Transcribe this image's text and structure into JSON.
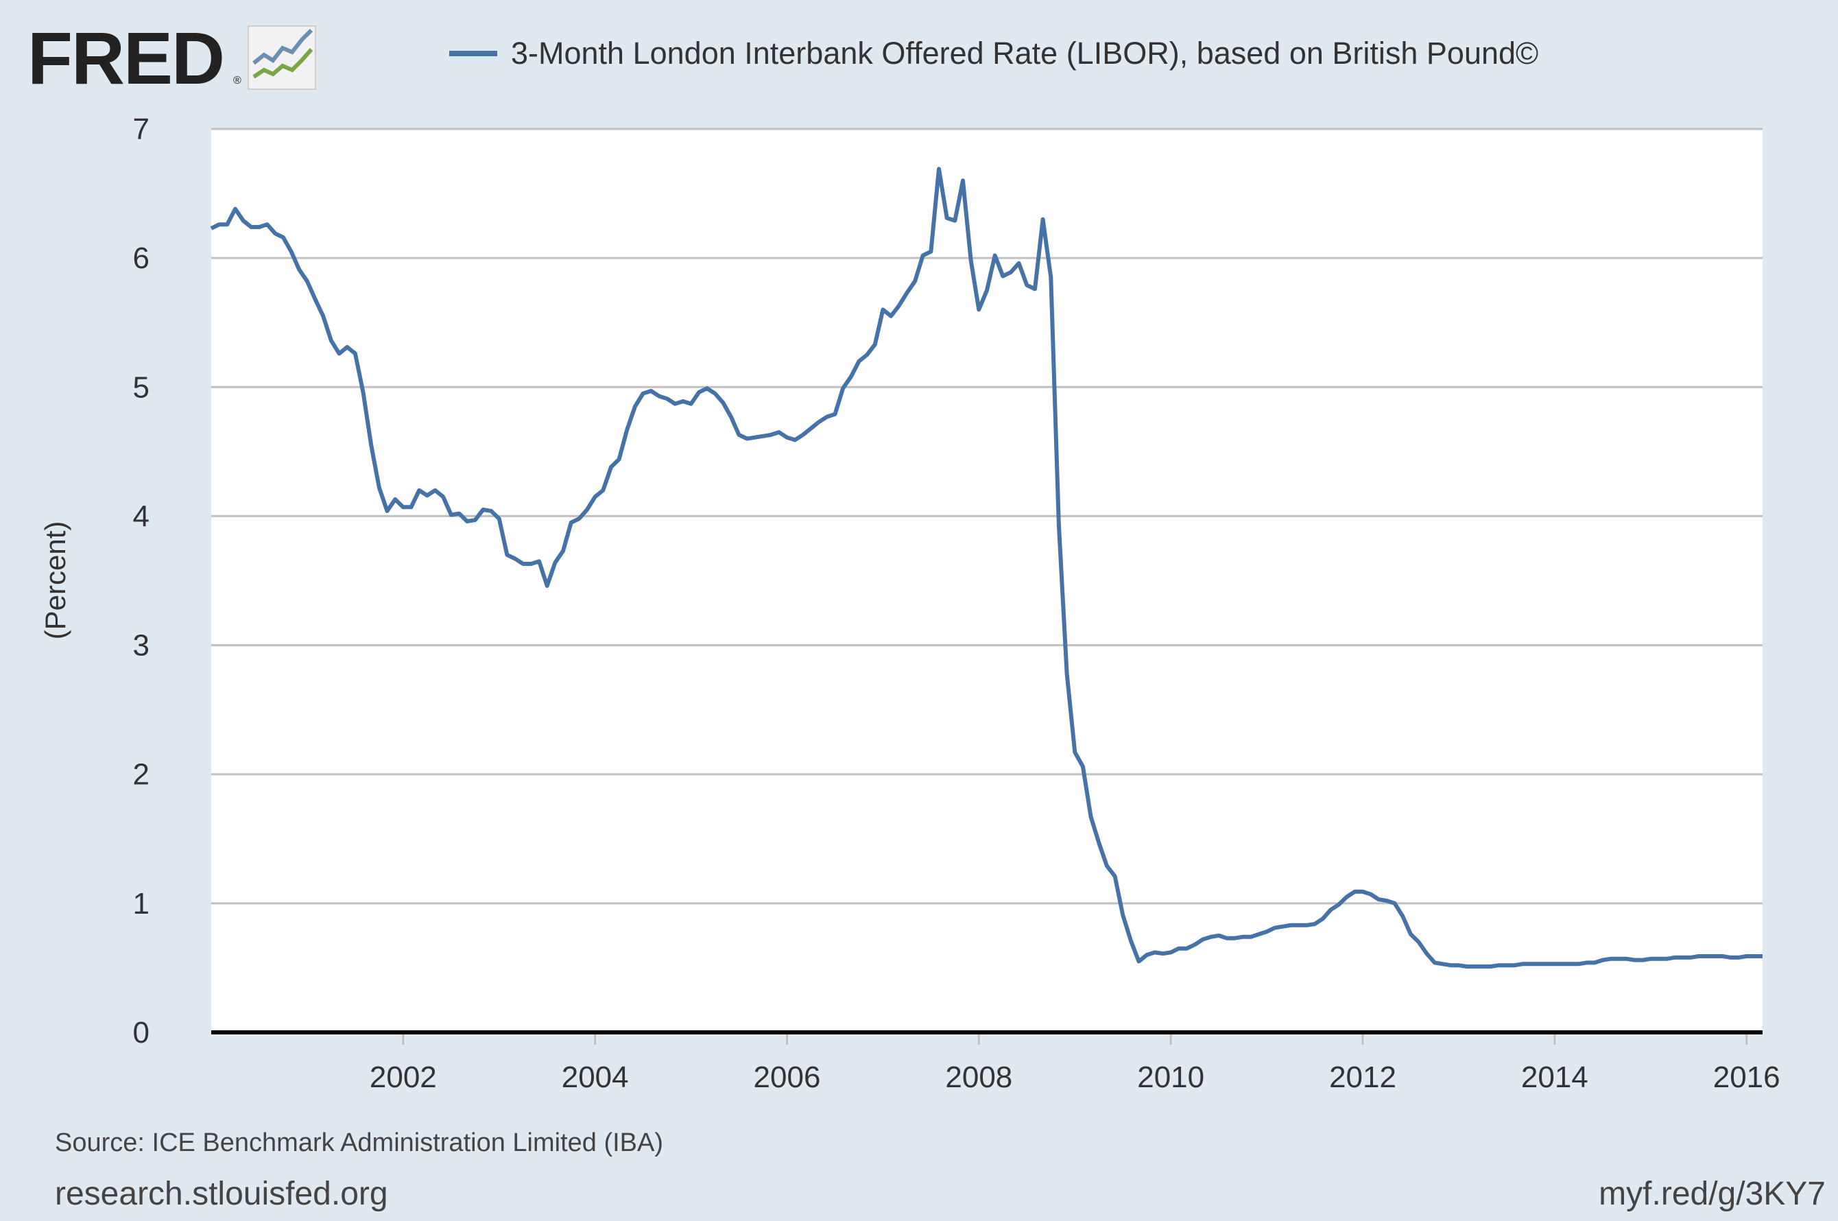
{
  "header": {
    "logo_text": "FRED",
    "logo_mark": "®",
    "logo_icon": "chart-line-icon"
  },
  "colors": {
    "background": "#e1e9f0",
    "plot_background": "#ffffff",
    "series_line": "#4572a7",
    "grid": "#c0c0c0",
    "axis": "#000000",
    "text": "#333333"
  },
  "chart_data": {
    "type": "line",
    "title": "",
    "xlabel": "",
    "ylabel": "(Percent)",
    "ylim": [
      0,
      7
    ],
    "xlim": [
      "2000-01",
      "2016-03"
    ],
    "y_ticks": [
      0,
      1,
      2,
      3,
      4,
      5,
      6,
      7
    ],
    "x_ticks": [
      "2002",
      "2004",
      "2006",
      "2008",
      "2010",
      "2012",
      "2014",
      "2016"
    ],
    "grid": true,
    "legend_position": "top",
    "series": [
      {
        "name": "3-Month London Interbank Offered Rate (LIBOR), based on British Pound©",
        "points": [
          [
            "2000-01",
            6.23
          ],
          [
            "2000-02",
            6.26
          ],
          [
            "2000-03",
            6.26
          ],
          [
            "2000-04",
            6.38
          ],
          [
            "2000-05",
            6.29
          ],
          [
            "2000-06",
            6.24
          ],
          [
            "2000-07",
            6.24
          ],
          [
            "2000-08",
            6.26
          ],
          [
            "2000-09",
            6.19
          ],
          [
            "2000-10",
            6.16
          ],
          [
            "2000-11",
            6.05
          ],
          [
            "2000-12",
            5.91
          ],
          [
            "2001-01",
            5.82
          ],
          [
            "2001-02",
            5.68
          ],
          [
            "2001-03",
            5.55
          ],
          [
            "2001-04",
            5.36
          ],
          [
            "2001-05",
            5.26
          ],
          [
            "2001-06",
            5.31
          ],
          [
            "2001-07",
            5.26
          ],
          [
            "2001-08",
            4.96
          ],
          [
            "2001-09",
            4.55
          ],
          [
            "2001-10",
            4.22
          ],
          [
            "2001-11",
            4.04
          ],
          [
            "2001-12",
            4.13
          ],
          [
            "2002-01",
            4.07
          ],
          [
            "2002-02",
            4.07
          ],
          [
            "2002-03",
            4.2
          ],
          [
            "2002-04",
            4.16
          ],
          [
            "2002-05",
            4.2
          ],
          [
            "2002-06",
            4.15
          ],
          [
            "2002-07",
            4.01
          ],
          [
            "2002-08",
            4.02
          ],
          [
            "2002-09",
            3.96
          ],
          [
            "2002-10",
            3.97
          ],
          [
            "2002-11",
            4.05
          ],
          [
            "2002-12",
            4.04
          ],
          [
            "2003-01",
            3.98
          ],
          [
            "2003-02",
            3.7
          ],
          [
            "2003-03",
            3.67
          ],
          [
            "2003-04",
            3.63
          ],
          [
            "2003-05",
            3.63
          ],
          [
            "2003-06",
            3.65
          ],
          [
            "2003-07",
            3.46
          ],
          [
            "2003-08",
            3.64
          ],
          [
            "2003-09",
            3.73
          ],
          [
            "2003-10",
            3.95
          ],
          [
            "2003-11",
            3.98
          ],
          [
            "2003-12",
            4.05
          ],
          [
            "2004-01",
            4.15
          ],
          [
            "2004-02",
            4.2
          ],
          [
            "2004-03",
            4.38
          ],
          [
            "2004-04",
            4.44
          ],
          [
            "2004-05",
            4.67
          ],
          [
            "2004-06",
            4.85
          ],
          [
            "2004-07",
            4.95
          ],
          [
            "2004-08",
            4.97
          ],
          [
            "2004-09",
            4.93
          ],
          [
            "2004-10",
            4.91
          ],
          [
            "2004-11",
            4.87
          ],
          [
            "2004-12",
            4.89
          ],
          [
            "2005-01",
            4.87
          ],
          [
            "2005-02",
            4.96
          ],
          [
            "2005-03",
            4.99
          ],
          [
            "2005-04",
            4.95
          ],
          [
            "2005-05",
            4.88
          ],
          [
            "2005-06",
            4.77
          ],
          [
            "2005-07",
            4.63
          ],
          [
            "2005-08",
            4.6
          ],
          [
            "2005-09",
            4.61
          ],
          [
            "2005-10",
            4.62
          ],
          [
            "2005-11",
            4.63
          ],
          [
            "2005-12",
            4.65
          ],
          [
            "2006-01",
            4.61
          ],
          [
            "2006-02",
            4.59
          ],
          [
            "2006-03",
            4.63
          ],
          [
            "2006-04",
            4.68
          ],
          [
            "2006-05",
            4.73
          ],
          [
            "2006-06",
            4.77
          ],
          [
            "2006-07",
            4.79
          ],
          [
            "2006-08",
            4.99
          ],
          [
            "2006-09",
            5.08
          ],
          [
            "2006-10",
            5.2
          ],
          [
            "2006-11",
            5.25
          ],
          [
            "2006-12",
            5.33
          ],
          [
            "2007-01",
            5.6
          ],
          [
            "2007-02",
            5.55
          ],
          [
            "2007-03",
            5.63
          ],
          [
            "2007-04",
            5.73
          ],
          [
            "2007-05",
            5.82
          ],
          [
            "2007-06",
            6.02
          ],
          [
            "2007-07",
            6.05
          ],
          [
            "2007-08",
            6.69
          ],
          [
            "2007-09",
            6.31
          ],
          [
            "2007-10",
            6.29
          ],
          [
            "2007-11",
            6.6
          ],
          [
            "2007-12",
            5.98
          ],
          [
            "2008-01",
            5.6
          ],
          [
            "2008-02",
            5.75
          ],
          [
            "2008-03",
            6.02
          ],
          [
            "2008-04",
            5.86
          ],
          [
            "2008-05",
            5.89
          ],
          [
            "2008-06",
            5.96
          ],
          [
            "2008-07",
            5.79
          ],
          [
            "2008-08",
            5.76
          ],
          [
            "2008-09",
            6.3
          ],
          [
            "2008-10",
            5.85
          ],
          [
            "2008-11",
            3.93
          ],
          [
            "2008-12",
            2.78
          ],
          [
            "2009-01",
            2.17
          ],
          [
            "2009-02",
            2.06
          ],
          [
            "2009-03",
            1.67
          ],
          [
            "2009-04",
            1.47
          ],
          [
            "2009-05",
            1.29
          ],
          [
            "2009-06",
            1.21
          ],
          [
            "2009-07",
            0.91
          ],
          [
            "2009-08",
            0.71
          ],
          [
            "2009-09",
            0.55
          ],
          [
            "2009-10",
            0.6
          ],
          [
            "2009-11",
            0.62
          ],
          [
            "2009-12",
            0.61
          ],
          [
            "2010-01",
            0.62
          ],
          [
            "2010-02",
            0.65
          ],
          [
            "2010-03",
            0.65
          ],
          [
            "2010-04",
            0.68
          ],
          [
            "2010-05",
            0.72
          ],
          [
            "2010-06",
            0.74
          ],
          [
            "2010-07",
            0.75
          ],
          [
            "2010-08",
            0.73
          ],
          [
            "2010-09",
            0.73
          ],
          [
            "2010-10",
            0.74
          ],
          [
            "2010-11",
            0.74
          ],
          [
            "2010-12",
            0.76
          ],
          [
            "2011-01",
            0.78
          ],
          [
            "2011-02",
            0.81
          ],
          [
            "2011-03",
            0.82
          ],
          [
            "2011-04",
            0.83
          ],
          [
            "2011-05",
            0.83
          ],
          [
            "2011-06",
            0.83
          ],
          [
            "2011-07",
            0.84
          ],
          [
            "2011-08",
            0.88
          ],
          [
            "2011-09",
            0.95
          ],
          [
            "2011-10",
            0.99
          ],
          [
            "2011-11",
            1.05
          ],
          [
            "2011-12",
            1.09
          ],
          [
            "2012-01",
            1.09
          ],
          [
            "2012-02",
            1.07
          ],
          [
            "2012-03",
            1.03
          ],
          [
            "2012-04",
            1.02
          ],
          [
            "2012-05",
            1.0
          ],
          [
            "2012-06",
            0.9
          ],
          [
            "2012-07",
            0.76
          ],
          [
            "2012-08",
            0.7
          ],
          [
            "2012-09",
            0.61
          ],
          [
            "2012-10",
            0.54
          ],
          [
            "2012-11",
            0.53
          ],
          [
            "2012-12",
            0.52
          ],
          [
            "2013-01",
            0.52
          ],
          [
            "2013-02",
            0.51
          ],
          [
            "2013-03",
            0.51
          ],
          [
            "2013-04",
            0.51
          ],
          [
            "2013-05",
            0.51
          ],
          [
            "2013-06",
            0.52
          ],
          [
            "2013-07",
            0.52
          ],
          [
            "2013-08",
            0.52
          ],
          [
            "2013-09",
            0.53
          ],
          [
            "2013-10",
            0.53
          ],
          [
            "2013-11",
            0.53
          ],
          [
            "2013-12",
            0.53
          ],
          [
            "2014-01",
            0.53
          ],
          [
            "2014-02",
            0.53
          ],
          [
            "2014-03",
            0.53
          ],
          [
            "2014-04",
            0.53
          ],
          [
            "2014-05",
            0.54
          ],
          [
            "2014-06",
            0.54
          ],
          [
            "2014-07",
            0.56
          ],
          [
            "2014-08",
            0.57
          ],
          [
            "2014-09",
            0.57
          ],
          [
            "2014-10",
            0.57
          ],
          [
            "2014-11",
            0.56
          ],
          [
            "2014-12",
            0.56
          ],
          [
            "2015-01",
            0.57
          ],
          [
            "2015-02",
            0.57
          ],
          [
            "2015-03",
            0.57
          ],
          [
            "2015-04",
            0.58
          ],
          [
            "2015-05",
            0.58
          ],
          [
            "2015-06",
            0.58
          ],
          [
            "2015-07",
            0.59
          ],
          [
            "2015-08",
            0.59
          ],
          [
            "2015-09",
            0.59
          ],
          [
            "2015-10",
            0.59
          ],
          [
            "2015-11",
            0.58
          ],
          [
            "2015-12",
            0.58
          ],
          [
            "2016-01",
            0.59
          ],
          [
            "2016-02",
            0.59
          ],
          [
            "2016-03",
            0.59
          ]
        ]
      }
    ]
  },
  "footer": {
    "source": "Source: ICE Benchmark Administration Limited (IBA)",
    "site": "research.stlouisfed.org",
    "short_link": "myf.red/g/3KY7"
  }
}
